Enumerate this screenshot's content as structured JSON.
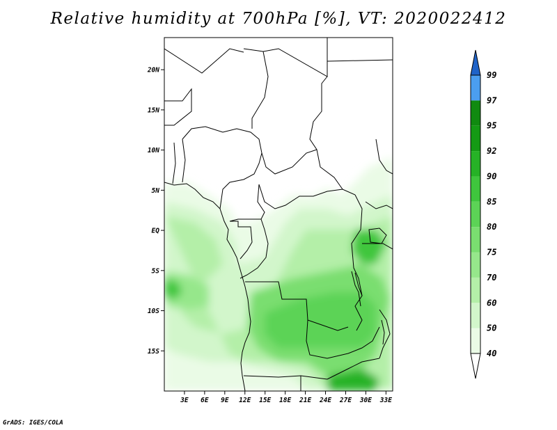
{
  "title": "Relative humidity at 700hPa [%], VT: 2020022412",
  "credit": "GrADS: IGES/COLA",
  "map": {
    "lon_range": [
      0,
      34
    ],
    "lat_range": [
      -20,
      24
    ],
    "lat_ticks": [
      {
        "value": 20,
        "label": "20N"
      },
      {
        "value": 15,
        "label": "15N"
      },
      {
        "value": 10,
        "label": "10N"
      },
      {
        "value": 5,
        "label": "5N"
      },
      {
        "value": 0,
        "label": "EQ"
      },
      {
        "value": -5,
        "label": "5S"
      },
      {
        "value": -10,
        "label": "10S"
      },
      {
        "value": -15,
        "label": "15S"
      }
    ],
    "lon_ticks": [
      {
        "value": 3,
        "label": "3E"
      },
      {
        "value": 6,
        "label": "6E"
      },
      {
        "value": 9,
        "label": "9E"
      },
      {
        "value": 12,
        "label": "12E"
      },
      {
        "value": 15,
        "label": "15E"
      },
      {
        "value": 18,
        "label": "18E"
      },
      {
        "value": 21,
        "label": "21E"
      },
      {
        "value": 24,
        "label": "24E"
      },
      {
        "value": 27,
        "label": "27E"
      },
      {
        "value": 30,
        "label": "30E"
      },
      {
        "value": 33,
        "label": "33E"
      }
    ]
  },
  "colorbar": {
    "levels": [
      {
        "label": "40",
        "color": "#eafbe6"
      },
      {
        "label": "50",
        "color": "#d2f6cb"
      },
      {
        "label": "60",
        "color": "#b4efa8"
      },
      {
        "label": "70",
        "color": "#96e78b"
      },
      {
        "label": "75",
        "color": "#7ade70"
      },
      {
        "label": "80",
        "color": "#5cd356"
      },
      {
        "label": "85",
        "color": "#3fc63d"
      },
      {
        "label": "90",
        "color": "#26b226"
      },
      {
        "label": "92",
        "color": "#149a14"
      },
      {
        "label": "95",
        "color": "#108a10"
      },
      {
        "label": "97",
        "color": "#4b9ef0"
      },
      {
        "label": "99",
        "color": "#2a7fe0"
      }
    ],
    "below_color": "#ffffff",
    "above_color": "#1f63c8"
  }
}
